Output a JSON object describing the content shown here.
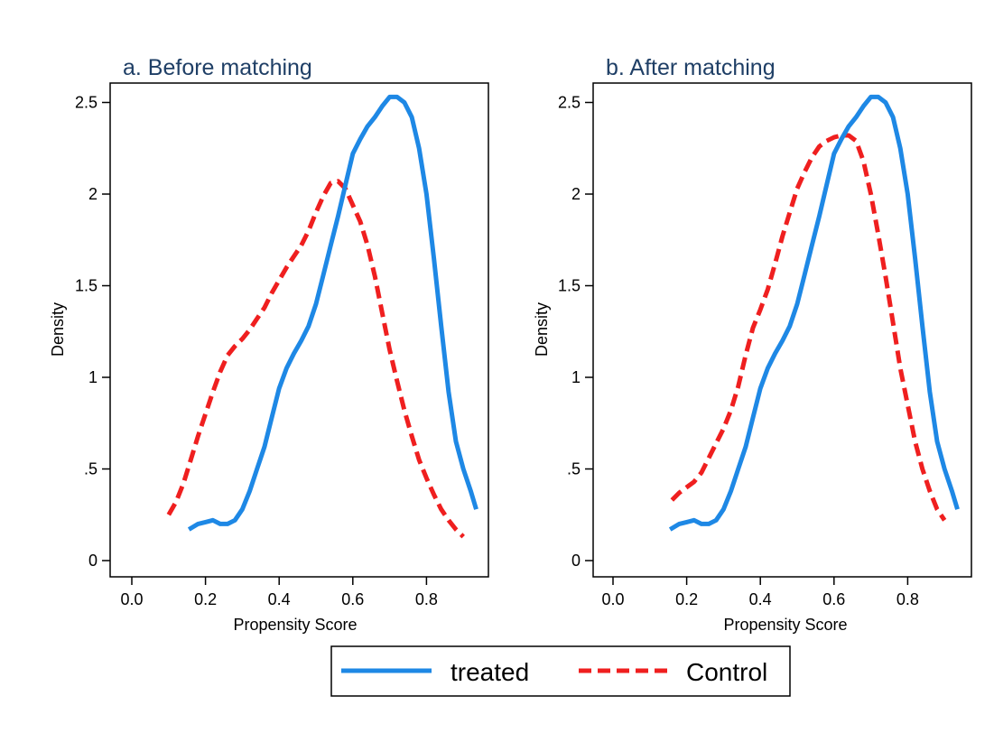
{
  "colors": {
    "treated": "#1e88e5",
    "control": "#ef1f1f",
    "title": "#1f3f66",
    "axis": "#000000"
  },
  "legend": {
    "position": "bottom-center",
    "items": [
      "treated",
      "Control"
    ]
  },
  "chart_data": [
    {
      "type": "line",
      "title": "a. Before matching",
      "xlabel": "Propensity Score",
      "ylabel": "Density",
      "xlim": [
        0,
        0.95
      ],
      "ylim": [
        0,
        2.55
      ],
      "xticks": [
        "0.0",
        "0.2",
        "0.4",
        "0.6",
        "0.8"
      ],
      "yticks": [
        "0",
        ".5",
        "1",
        "1.5",
        "2",
        "2.5"
      ],
      "series": [
        {
          "name": "treated",
          "style": "solid",
          "x": [
            0.155,
            0.18,
            0.2,
            0.22,
            0.24,
            0.26,
            0.28,
            0.3,
            0.32,
            0.34,
            0.36,
            0.38,
            0.4,
            0.42,
            0.44,
            0.46,
            0.48,
            0.5,
            0.52,
            0.54,
            0.56,
            0.58,
            0.6,
            0.62,
            0.64,
            0.66,
            0.68,
            0.7,
            0.72,
            0.74,
            0.76,
            0.78,
            0.8,
            0.82,
            0.84,
            0.86,
            0.88,
            0.9,
            0.92,
            0.935
          ],
          "y": [
            0.17,
            0.2,
            0.21,
            0.22,
            0.2,
            0.2,
            0.22,
            0.28,
            0.38,
            0.5,
            0.62,
            0.78,
            0.94,
            1.05,
            1.13,
            1.2,
            1.28,
            1.4,
            1.56,
            1.72,
            1.88,
            2.05,
            2.22,
            2.3,
            2.37,
            2.42,
            2.48,
            2.53,
            2.53,
            2.5,
            2.42,
            2.25,
            2.0,
            1.65,
            1.28,
            0.92,
            0.65,
            0.5,
            0.38,
            0.28
          ]
        },
        {
          "name": "Control",
          "style": "dashed",
          "x": [
            0.1,
            0.12,
            0.14,
            0.16,
            0.18,
            0.2,
            0.22,
            0.24,
            0.26,
            0.28,
            0.3,
            0.32,
            0.34,
            0.36,
            0.38,
            0.4,
            0.42,
            0.44,
            0.46,
            0.48,
            0.5,
            0.52,
            0.54,
            0.56,
            0.58,
            0.6,
            0.62,
            0.64,
            0.66,
            0.68,
            0.7,
            0.72,
            0.74,
            0.76,
            0.78,
            0.8,
            0.82,
            0.84,
            0.86,
            0.88,
            0.9
          ],
          "y": [
            0.25,
            0.32,
            0.42,
            0.55,
            0.68,
            0.8,
            0.92,
            1.03,
            1.12,
            1.17,
            1.21,
            1.26,
            1.32,
            1.38,
            1.46,
            1.53,
            1.6,
            1.66,
            1.72,
            1.8,
            1.9,
            1.99,
            2.06,
            2.07,
            2.03,
            1.94,
            1.85,
            1.72,
            1.55,
            1.35,
            1.15,
            0.98,
            0.82,
            0.68,
            0.55,
            0.45,
            0.36,
            0.28,
            0.22,
            0.17,
            0.13
          ]
        }
      ]
    },
    {
      "type": "line",
      "title": "b. After matching",
      "xlabel": "Propensity Score",
      "ylabel": "Density",
      "xlim": [
        0,
        0.95
      ],
      "ylim": [
        0,
        2.55
      ],
      "xticks": [
        "0.0",
        "0.2",
        "0.4",
        "0.6",
        "0.8"
      ],
      "yticks": [
        "0",
        ".5",
        "1",
        "1.5",
        "2",
        "2.5"
      ],
      "series": [
        {
          "name": "treated",
          "style": "solid",
          "x": [
            0.155,
            0.18,
            0.2,
            0.22,
            0.24,
            0.26,
            0.28,
            0.3,
            0.32,
            0.34,
            0.36,
            0.38,
            0.4,
            0.42,
            0.44,
            0.46,
            0.48,
            0.5,
            0.52,
            0.54,
            0.56,
            0.58,
            0.6,
            0.62,
            0.64,
            0.66,
            0.68,
            0.7,
            0.72,
            0.74,
            0.76,
            0.78,
            0.8,
            0.82,
            0.84,
            0.86,
            0.88,
            0.9,
            0.92,
            0.935
          ],
          "y": [
            0.17,
            0.2,
            0.21,
            0.22,
            0.2,
            0.2,
            0.22,
            0.28,
            0.38,
            0.5,
            0.62,
            0.78,
            0.94,
            1.05,
            1.13,
            1.2,
            1.28,
            1.4,
            1.56,
            1.72,
            1.88,
            2.05,
            2.22,
            2.3,
            2.37,
            2.42,
            2.48,
            2.53,
            2.53,
            2.5,
            2.42,
            2.25,
            2.0,
            1.65,
            1.28,
            0.92,
            0.65,
            0.5,
            0.38,
            0.28
          ]
        },
        {
          "name": "Control",
          "style": "dashed",
          "x": [
            0.16,
            0.18,
            0.2,
            0.22,
            0.24,
            0.26,
            0.28,
            0.3,
            0.32,
            0.34,
            0.36,
            0.38,
            0.4,
            0.42,
            0.44,
            0.46,
            0.48,
            0.5,
            0.52,
            0.54,
            0.56,
            0.58,
            0.6,
            0.62,
            0.64,
            0.66,
            0.68,
            0.7,
            0.72,
            0.74,
            0.76,
            0.78,
            0.8,
            0.82,
            0.84,
            0.86,
            0.88,
            0.9
          ],
          "y": [
            0.33,
            0.37,
            0.4,
            0.43,
            0.48,
            0.56,
            0.64,
            0.72,
            0.82,
            0.95,
            1.12,
            1.27,
            1.37,
            1.48,
            1.62,
            1.77,
            1.9,
            2.03,
            2.12,
            2.2,
            2.26,
            2.29,
            2.31,
            2.32,
            2.32,
            2.29,
            2.18,
            2.0,
            1.78,
            1.55,
            1.3,
            1.05,
            0.85,
            0.65,
            0.5,
            0.38,
            0.28,
            0.22
          ]
        }
      ]
    }
  ]
}
